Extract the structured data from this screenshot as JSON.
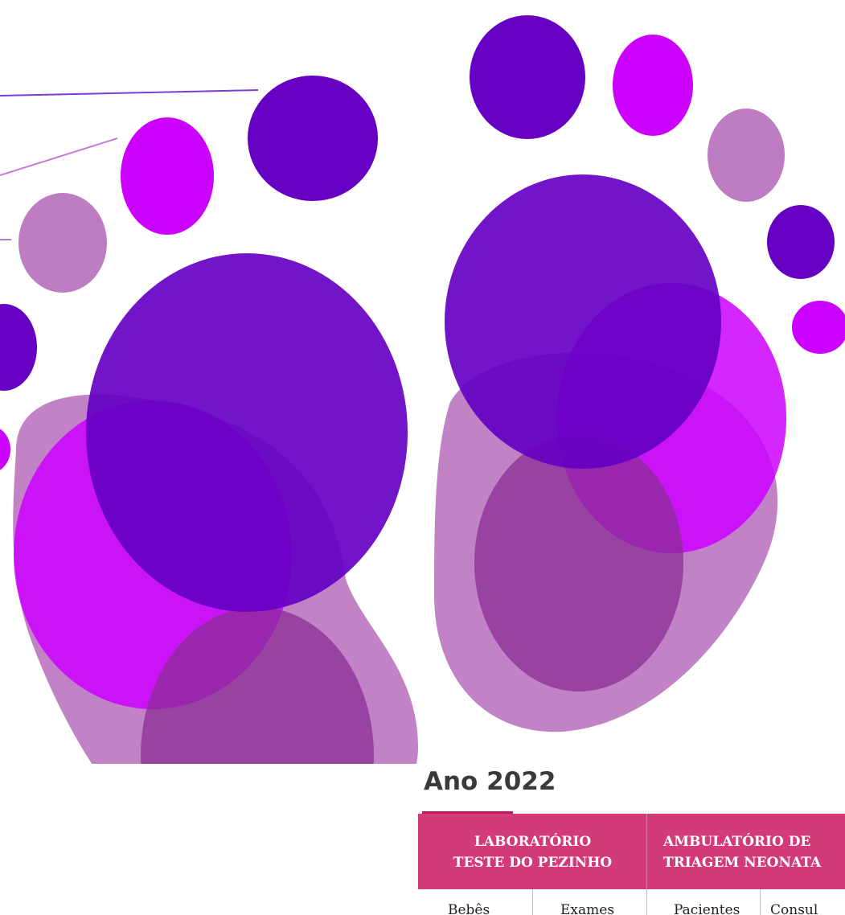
{
  "title": "Ano 2022",
  "table": {
    "headers": [
      {
        "line1": "LABORATÓRIO",
        "line2": "TESTE DO PEZINHO"
      },
      {
        "line1": "AMBULATÓRIO DE",
        "line2": "TRIAGEM NEONATA"
      }
    ],
    "columns": [
      "Bebês",
      "Exames",
      "Pacientes",
      "Consul"
    ]
  },
  "colors": {
    "dark_purple": "#6600c2",
    "magenta": "#cc00ff",
    "lilac": "#be7cc3",
    "table_header": "#d23a78",
    "accent_underline": "#c2185b"
  }
}
